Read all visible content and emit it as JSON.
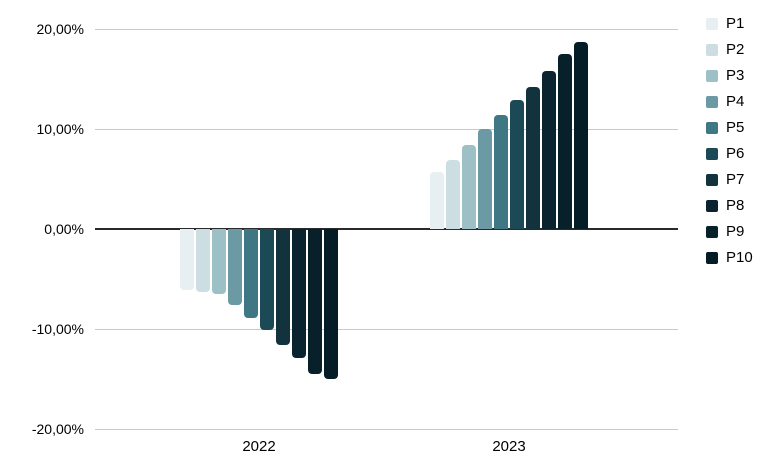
{
  "chart_data": {
    "type": "bar",
    "title": "",
    "xlabel": "",
    "ylabel": "",
    "categories": [
      "2022",
      "2023"
    ],
    "series": [
      {
        "name": "P1",
        "color": "#e7eff2",
        "values": [
          -6.1,
          5.7
        ]
      },
      {
        "name": "P2",
        "color": "#cddee2",
        "values": [
          -6.3,
          6.9
        ]
      },
      {
        "name": "P3",
        "color": "#9dbfc6",
        "values": [
          -6.5,
          8.4
        ]
      },
      {
        "name": "P4",
        "color": "#6b99a4",
        "values": [
          -7.6,
          10.0
        ]
      },
      {
        "name": "P5",
        "color": "#3f7784",
        "values": [
          -8.9,
          11.4
        ]
      },
      {
        "name": "P6",
        "color": "#1c4956",
        "values": [
          -10.1,
          12.9
        ]
      },
      {
        "name": "P7",
        "color": "#12333e",
        "values": [
          -11.6,
          14.2
        ]
      },
      {
        "name": "P8",
        "color": "#0a242f",
        "values": [
          -12.9,
          15.8
        ]
      },
      {
        "name": "P9",
        "color": "#072029",
        "values": [
          -14.5,
          17.5
        ]
      },
      {
        "name": "P10",
        "color": "#041c25",
        "values": [
          -15.0,
          18.7
        ]
      }
    ],
    "y_ticks": [
      {
        "value": 20,
        "label": "20,00%"
      },
      {
        "value": 10,
        "label": "10,00%"
      },
      {
        "value": 0,
        "label": "0,00%"
      },
      {
        "value": -10,
        "label": "-10,00%"
      },
      {
        "value": -20,
        "label": "-20,00%"
      }
    ],
    "ylim": [
      -20,
      20
    ],
    "grid": true,
    "legend_position": "right"
  },
  "colors": {
    "background": "#ffffff",
    "gridline": "#c9c9c9",
    "zero_line": "#2a2a2a",
    "text": "#000000"
  }
}
